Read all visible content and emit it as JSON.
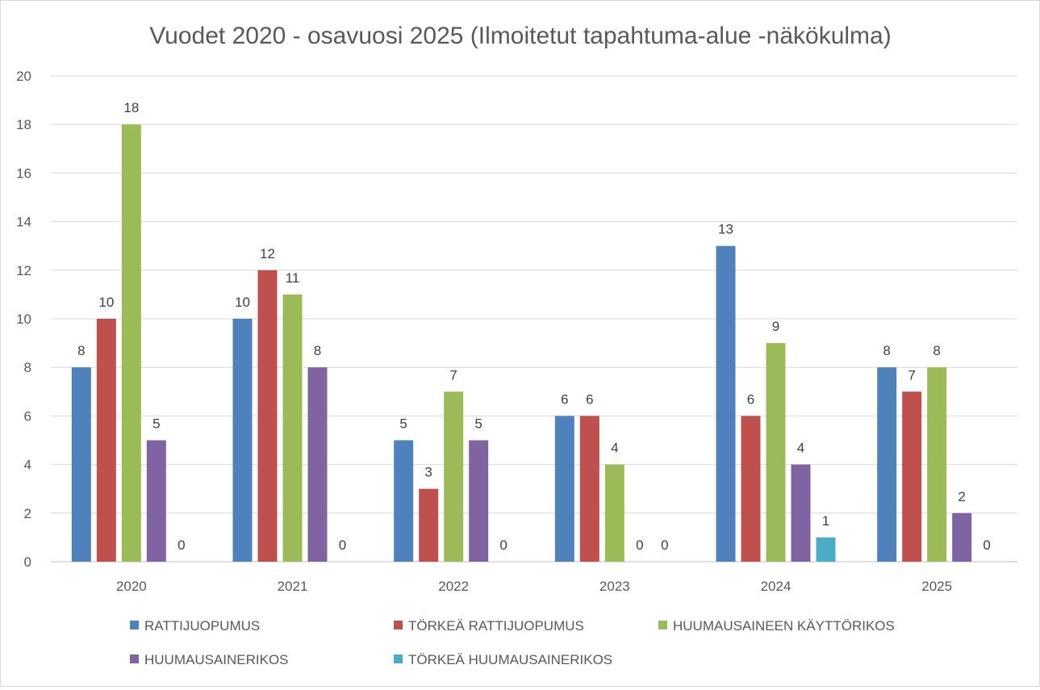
{
  "chart_data": {
    "type": "bar",
    "title": "Vuodet 2020 - osavuosi 2025 (Ilmoitetut tapahtuma-alue -näkökulma)",
    "xlabel": "",
    "ylabel": "",
    "ylim": [
      0,
      20
    ],
    "yticks": [
      0,
      2,
      4,
      6,
      8,
      10,
      12,
      14,
      16,
      18,
      20
    ],
    "grid": true,
    "legend_position": "bottom",
    "categories": [
      "2020",
      "2021",
      "2022",
      "2023",
      "2024",
      "2025"
    ],
    "series": [
      {
        "name": "RATTIJUOPUMUS",
        "color": "#4F81BD",
        "values": [
          8,
          10,
          5,
          6,
          13,
          8
        ]
      },
      {
        "name": "TÖRKEÄ RATTIJUOPUMUS",
        "color": "#C0504D",
        "values": [
          10,
          12,
          3,
          6,
          6,
          7
        ]
      },
      {
        "name": "HUUMAUSAINEEN KÄYTTÖRIKOS",
        "color": "#9BBB59",
        "values": [
          18,
          11,
          7,
          4,
          9,
          8
        ]
      },
      {
        "name": "HUUMAUSAINERIKOS",
        "color": "#8064A2",
        "values": [
          5,
          8,
          5,
          0,
          4,
          2
        ]
      },
      {
        "name": "TÖRKEÄ HUUMAUSAINERIKOS",
        "color": "#4BACC6",
        "values": [
          0,
          0,
          0,
          0,
          1,
          0
        ]
      }
    ]
  }
}
